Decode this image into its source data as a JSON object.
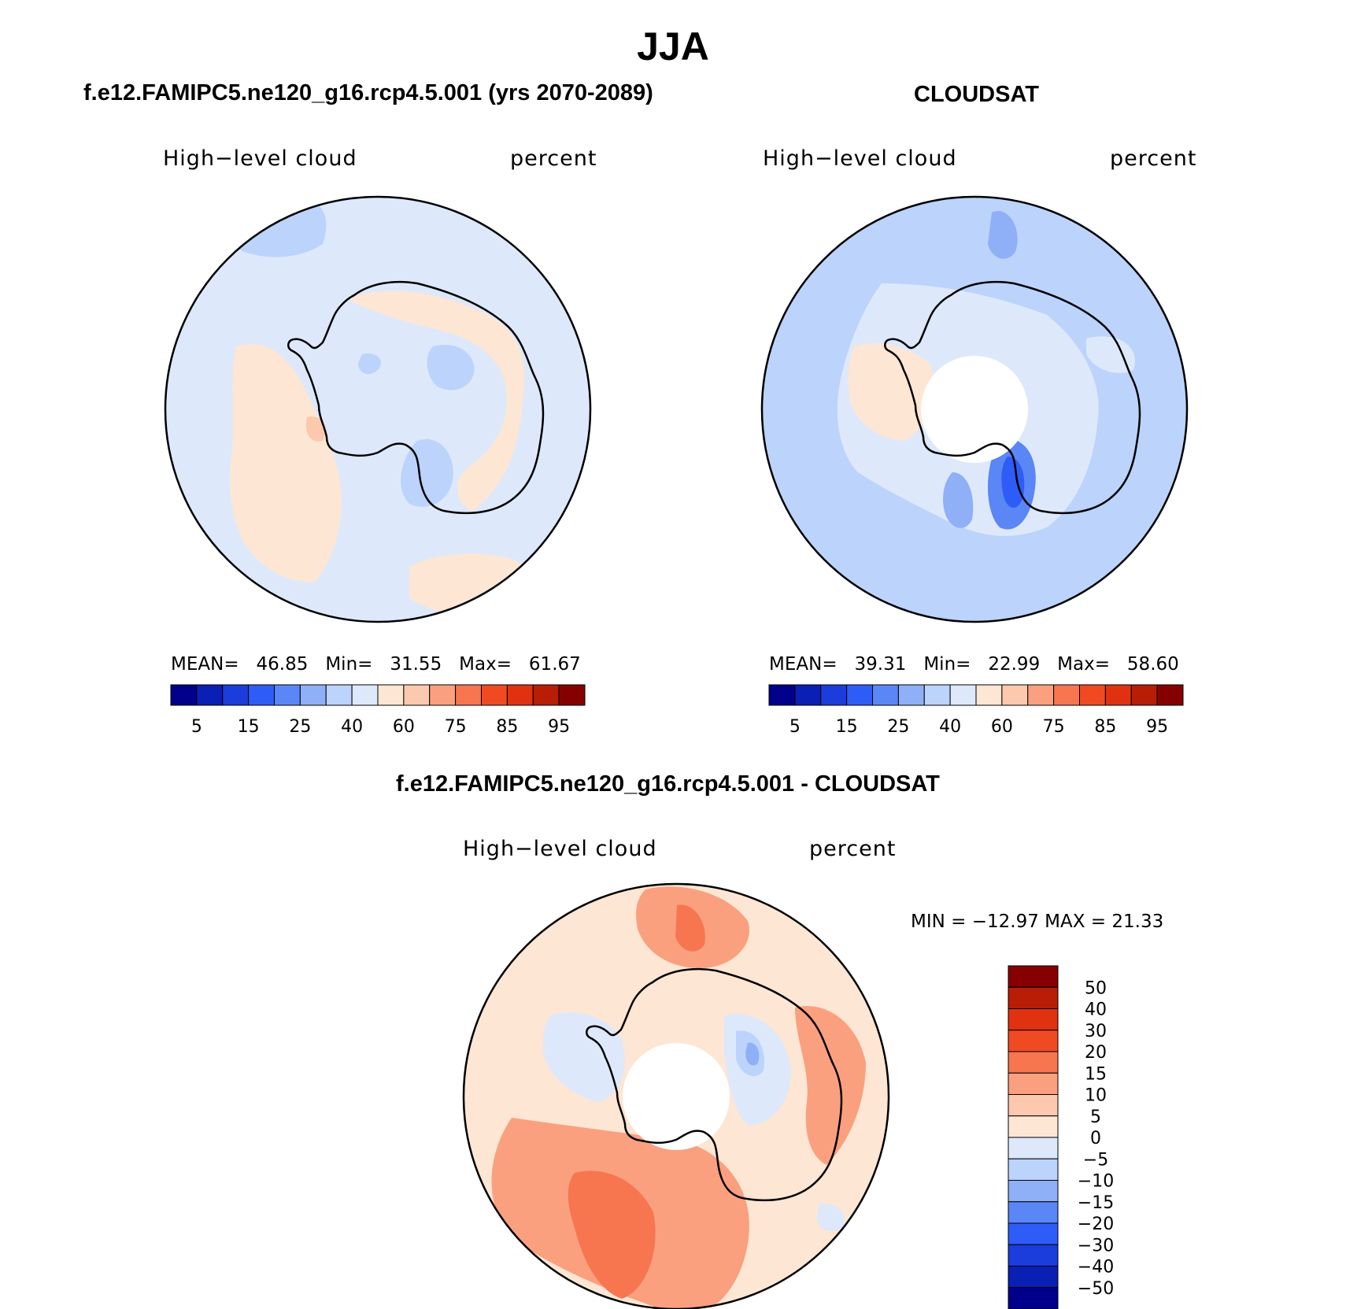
{
  "title": "JJA",
  "panels": [
    {
      "title": "f.e12.FAMIPC5.ne120_g16.rcp4.5.001 (yrs 2070-2089)",
      "field": "High−level cloud",
      "units": "percent",
      "stats": {
        "mean_label": "MEAN=",
        "mean": "46.85",
        "min_label": "Min=",
        "min": "31.55",
        "max_label": "Max=",
        "max": "61.67"
      }
    },
    {
      "title": "CLOUDSAT",
      "field": "High−level cloud",
      "units": "percent",
      "stats": {
        "mean_label": "MEAN=",
        "mean": "39.31",
        "min_label": "Min=",
        "min": "22.99",
        "max_label": "Max=",
        "max": "58.60"
      }
    },
    {
      "title": "f.e12.FAMIPC5.ne120_g16.rcp4.5.001 - CLOUDSAT",
      "field": "High−level cloud",
      "units": "percent",
      "stats": {
        "text": "MIN = −12.97 MAX =   21.33"
      }
    }
  ],
  "chart_data": [
    {
      "type": "heatmap",
      "projection": "south polar stereographic",
      "title": "f.e12.FAMIPC5.ne120_g16.rcp4.5.001 (yrs 2070-2089)",
      "field": "High−level cloud",
      "units": "percent",
      "mean": 46.85,
      "min": 31.55,
      "max": 61.67,
      "colorbar": {
        "orientation": "horizontal",
        "tick_labels": [
          "5",
          "15",
          "25",
          "40",
          "60",
          "75",
          "85",
          "95"
        ],
        "colors": [
          "#00008b",
          "#0a1fb4",
          "#1a3ddc",
          "#2e5cf6",
          "#5a86f6",
          "#8fb0f7",
          "#bcd3fb",
          "#dde9fb",
          "#fde6d3",
          "#fcc9ae",
          "#faa07f",
          "#f7764f",
          "#f04a22",
          "#e03210",
          "#b81d06",
          "#870000"
        ]
      }
    },
    {
      "type": "heatmap",
      "projection": "south polar stereographic",
      "title": "CLOUDSAT",
      "field": "High−level cloud",
      "units": "percent",
      "mean": 39.31,
      "min": 22.99,
      "max": 58.6,
      "colorbar": {
        "orientation": "horizontal",
        "tick_labels": [
          "5",
          "15",
          "25",
          "40",
          "60",
          "75",
          "85",
          "95"
        ],
        "colors": [
          "#00008b",
          "#0a1fb4",
          "#1a3ddc",
          "#2e5cf6",
          "#5a86f6",
          "#8fb0f7",
          "#bcd3fb",
          "#dde9fb",
          "#fde6d3",
          "#fcc9ae",
          "#faa07f",
          "#f7764f",
          "#f04a22",
          "#e03210",
          "#b81d06",
          "#870000"
        ]
      }
    },
    {
      "type": "heatmap",
      "projection": "south polar stereographic",
      "title": "f.e12.FAMIPC5.ne120_g16.rcp4.5.001 - CLOUDSAT",
      "field": "High−level cloud",
      "units": "percent",
      "min": -12.97,
      "max": 21.33,
      "colorbar": {
        "orientation": "vertical",
        "tick_labels": [
          "50",
          "40",
          "30",
          "20",
          "15",
          "10",
          "5",
          "0",
          "−5",
          "−10",
          "−15",
          "−20",
          "−30",
          "−40",
          "−50"
        ],
        "colors": [
          "#870000",
          "#b81d06",
          "#e03210",
          "#f04a22",
          "#f7764f",
          "#faa07f",
          "#fcc9ae",
          "#fde6d3",
          "#dde9fb",
          "#bcd3fb",
          "#8fb0f7",
          "#5a86f6",
          "#2e5cf6",
          "#1a3ddc",
          "#0a1fb4",
          "#00008b"
        ]
      }
    }
  ]
}
